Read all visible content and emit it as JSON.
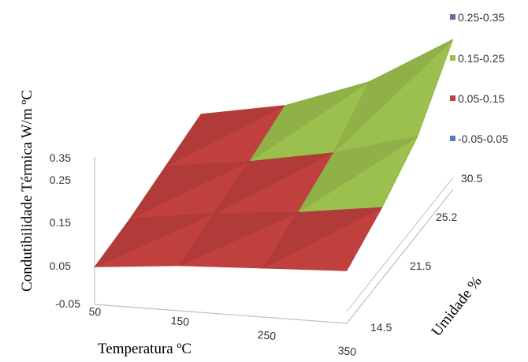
{
  "chart_data": {
    "type": "surface",
    "title": "",
    "zlabel": "Condutibilidade Térmica  W/m ºC",
    "xlabel": "Temperatura ºC",
    "ylabel": "Umidade %",
    "z_ticks": [
      "0.35",
      "0.25",
      "0.15",
      "0.05",
      "-0.05"
    ],
    "x_ticks": [
      "50",
      "150",
      "250",
      "350"
    ],
    "y_ticks": [
      "14.5",
      "21.5",
      "25.2",
      "30.5"
    ],
    "zlim": [
      -0.05,
      0.35
    ],
    "legend_position": "top-right",
    "legend": [
      {
        "label": "0.25-0.35",
        "color": "#7b5fa0"
      },
      {
        "label": "0.15-0.25",
        "color": "#9bc04e"
      },
      {
        "label": "0.05-0.15",
        "color": "#c0403d"
      },
      {
        "label": "-0.05-0.05",
        "color": "#4f81bd"
      }
    ],
    "surface_rows_note": "rows follow umidade from 14.5 (front) to 30.5 (back); columns follow temperatura 50..350",
    "x_values": [
      50,
      150,
      250,
      350
    ],
    "y_values": [
      14.5,
      21.5,
      25.2,
      30.5
    ],
    "z_values": [
      [
        0.05,
        0.07,
        0.08,
        0.09
      ],
      [
        0.06,
        0.09,
        0.11,
        0.14
      ],
      [
        0.08,
        0.11,
        0.15,
        0.21
      ],
      [
        0.1,
        0.14,
        0.22,
        0.35
      ]
    ]
  }
}
